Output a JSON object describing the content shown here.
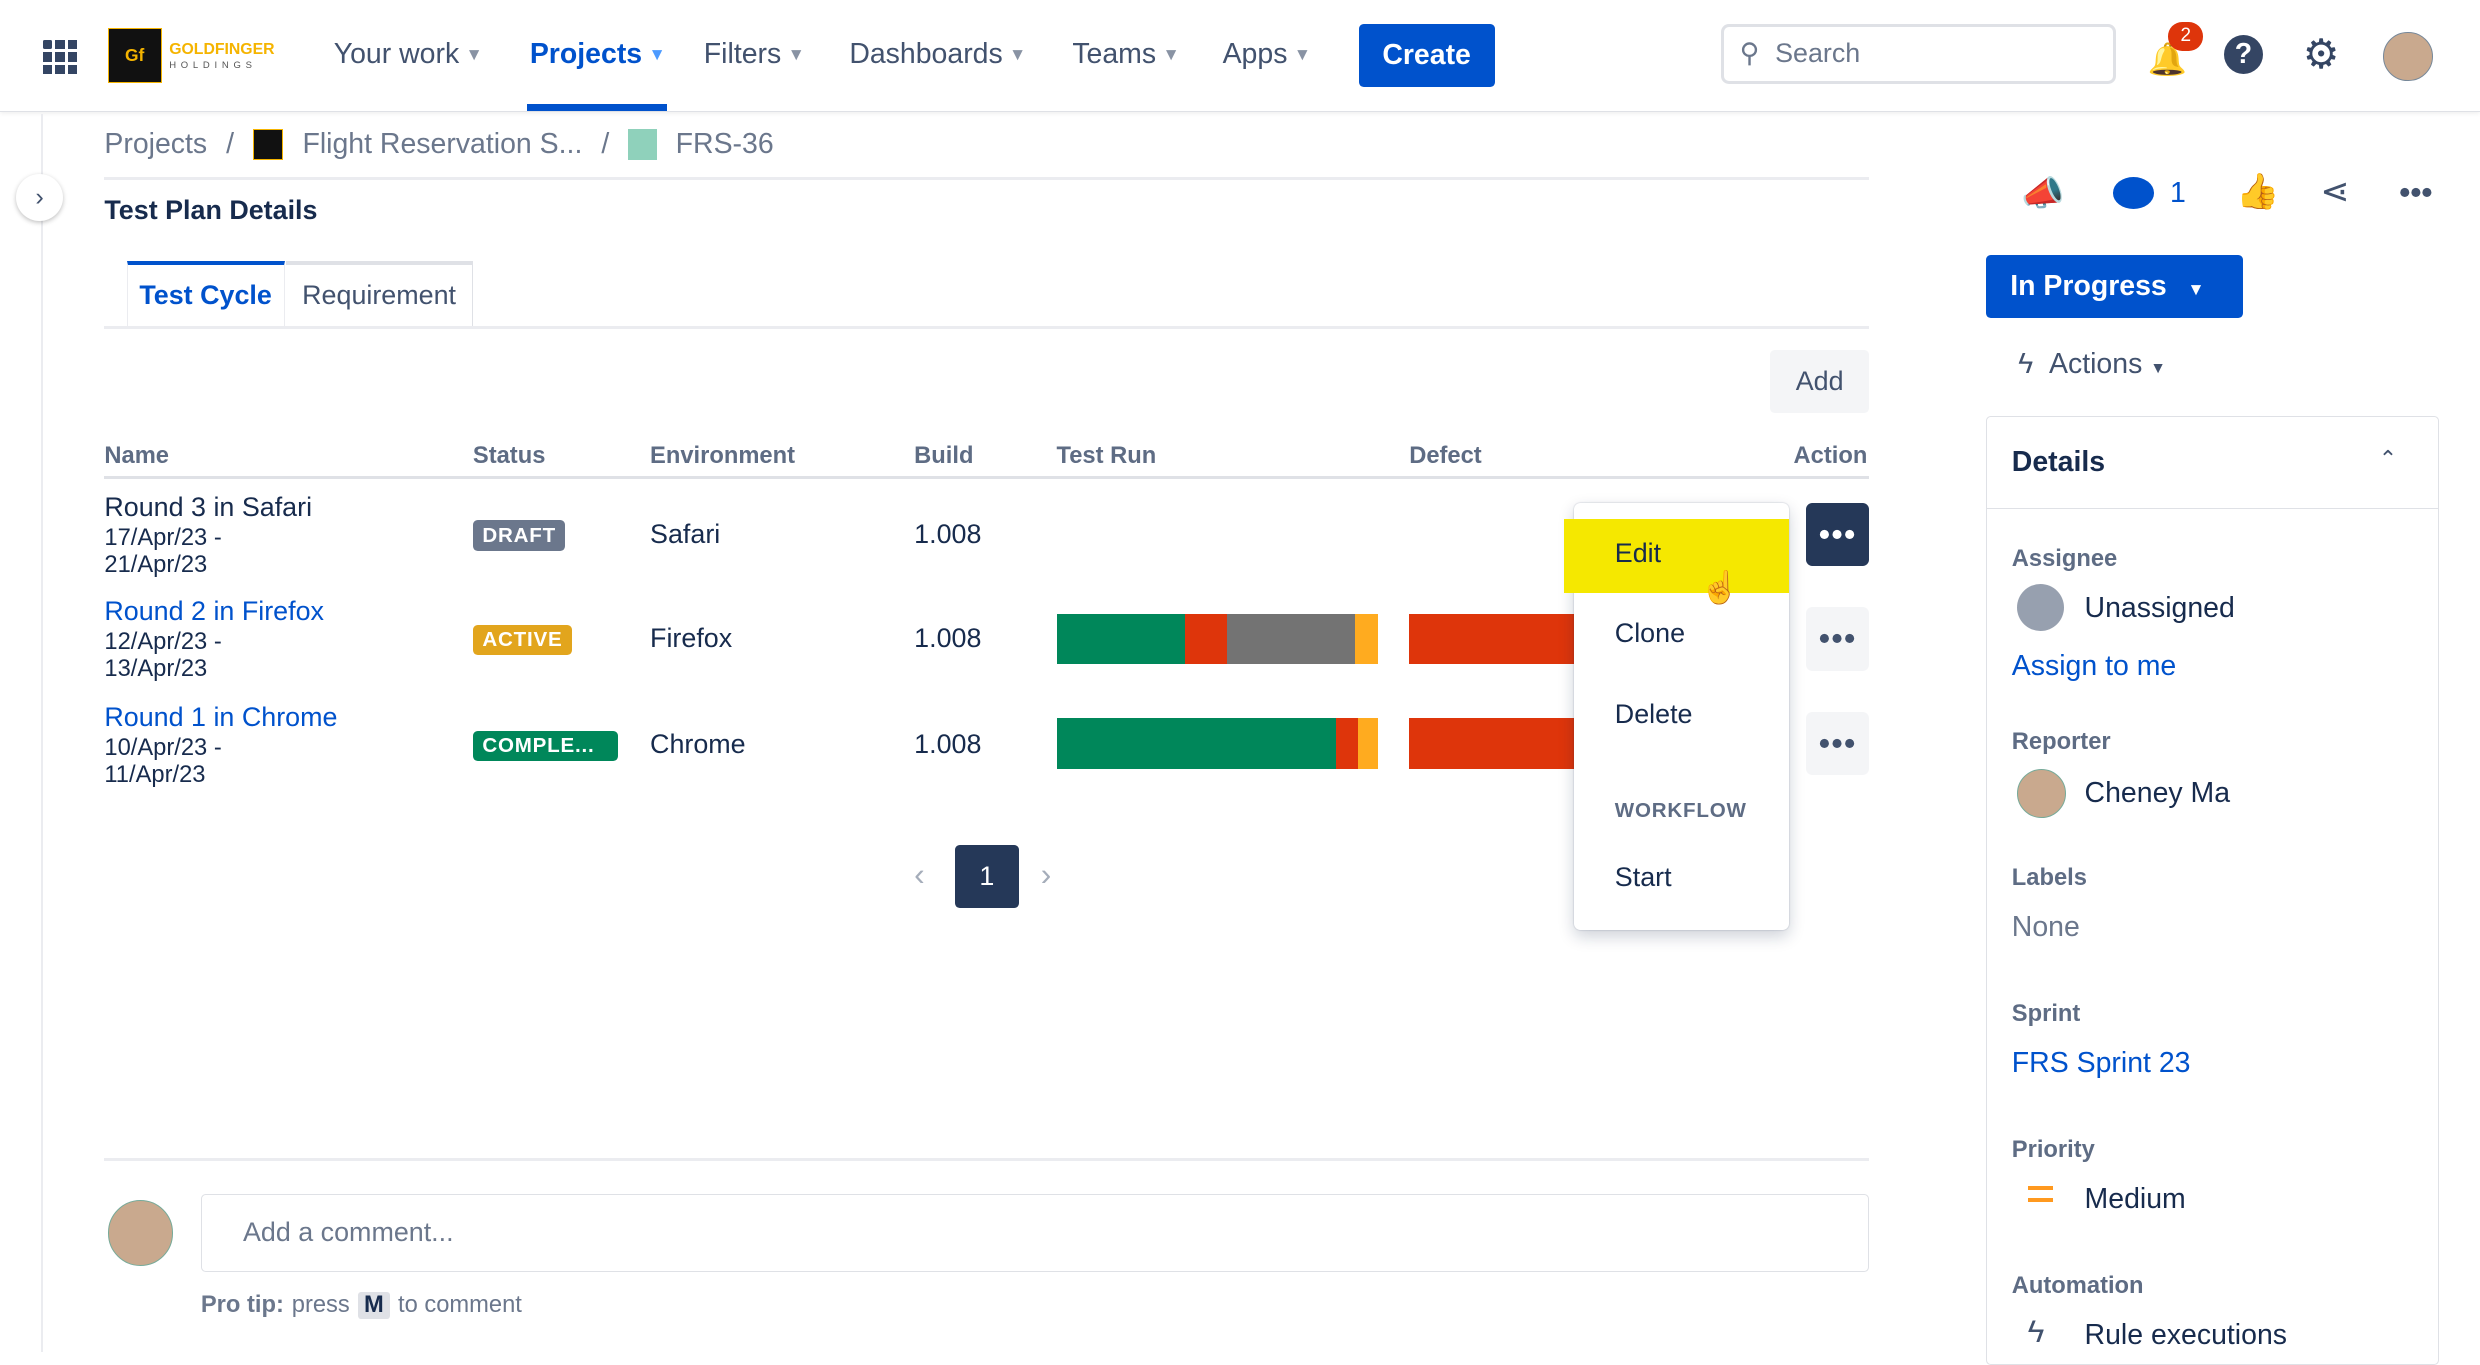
{
  "topnav": {
    "logo_text": "GOLDFINGER",
    "logo_sub": "HOLDINGS",
    "items": [
      "Your work",
      "Projects",
      "Filters",
      "Dashboards",
      "Teams",
      "Apps"
    ],
    "create": "Create",
    "search_placeholder": "Search",
    "notif_count": "2"
  },
  "breadcrumb": {
    "projects": "Projects",
    "project": "Flight Reservation S...",
    "issue": "FRS-36"
  },
  "section_title": "Test Plan Details",
  "tabs": [
    "Test Cycle",
    "Requirement"
  ],
  "add_button": "Add",
  "columns": [
    "Name",
    "Status",
    "Environment",
    "Build",
    "Test Run",
    "Defect",
    "Action"
  ],
  "rows": [
    {
      "name": "Round 3 in Safari",
      "dates": "17/Apr/23 -",
      "dates2": "21/Apr/23",
      "status": "DRAFT",
      "status_color": "#6b778c",
      "env": "Safari",
      "build": "1.008",
      "run": [],
      "defect": []
    },
    {
      "name": "Round 2 in Firefox",
      "dates": "12/Apr/23 -",
      "dates2": "13/Apr/23",
      "status": "ACTIVE",
      "status_color": "#e2a51d",
      "env": "Firefox",
      "build": "1.008",
      "run": [
        40,
        13,
        40,
        7
      ],
      "defect": [
        100
      ]
    },
    {
      "name": "Round 1 in Chrome",
      "dates": "10/Apr/23 -",
      "dates2": "11/Apr/23",
      "status": "COMPLE...",
      "status_color": "#00875a",
      "env": "Chrome",
      "build": "1.008",
      "run": [
        87,
        7,
        6
      ],
      "defect": [
        100
      ]
    }
  ],
  "run_colors": {
    "row2": [
      "#00875a",
      "#de350b",
      "#737373",
      "#ffab1f"
    ],
    "row3": [
      "#00875a",
      "#de350b",
      "#ffab1f"
    ]
  },
  "pagination": {
    "current": "1"
  },
  "menu": {
    "edit": "Edit",
    "clone": "Clone",
    "delete": "Delete",
    "workflow": "WORKFLOW",
    "start": "Start"
  },
  "comment": {
    "placeholder": "Add a comment...",
    "tip_label": "Pro tip:",
    "tip_pre": "press",
    "tip_key": "M",
    "tip_post": "to comment"
  },
  "side": {
    "watch_count": "1",
    "status": "In Progress",
    "actions": "Actions",
    "details": "Details",
    "assignee_label": "Assignee",
    "assignee": "Unassigned",
    "assign_me": "Assign to me",
    "reporter_label": "Reporter",
    "reporter": "Cheney Ma",
    "labels_label": "Labels",
    "labels": "None",
    "sprint_label": "Sprint",
    "sprint": "FRS Sprint 23",
    "priority_label": "Priority",
    "priority": "Medium",
    "automation_label": "Automation",
    "automation": "Rule executions"
  }
}
